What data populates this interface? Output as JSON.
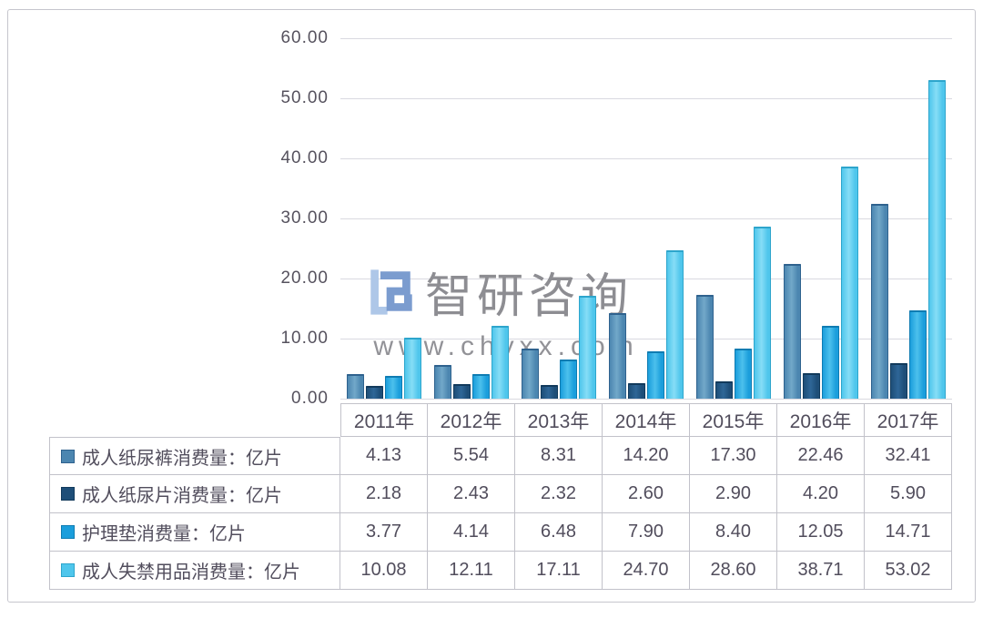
{
  "watermark": {
    "brand": "智研咨询",
    "url": "www.chyxx.com",
    "logo_color_dark": "#7b9ccf",
    "logo_color_light": "#aec7e8"
  },
  "chart_data": {
    "type": "bar",
    "title": "",
    "categories": [
      "2011年",
      "2012年",
      "2013年",
      "2014年",
      "2015年",
      "2016年",
      "2017年"
    ],
    "series": [
      {
        "name": "成人纸尿裤消费量：亿片",
        "values": [
          4.13,
          5.54,
          8.31,
          14.2,
          17.3,
          22.46,
          32.41
        ],
        "color": "#4c86b0",
        "color_light": "#72a8c9",
        "color_dark": "#2f628e"
      },
      {
        "name": "成人纸尿片消费量：亿片",
        "values": [
          2.18,
          2.43,
          2.32,
          2.6,
          2.9,
          4.2,
          5.9
        ],
        "color": "#1e4e78",
        "color_light": "#2e6697",
        "color_dark": "#123a5c"
      },
      {
        "name": "护理垫消费量：亿片",
        "values": [
          3.77,
          4.14,
          6.48,
          7.9,
          8.4,
          12.05,
          14.71
        ],
        "color": "#1b9edc",
        "color_light": "#4cc0ec",
        "color_dark": "#0f7cb2"
      },
      {
        "name": "成人失禁用品消费量：亿片",
        "values": [
          10.08,
          12.11,
          17.11,
          24.7,
          28.6,
          38.71,
          53.02
        ],
        "color": "#4fc6ec",
        "color_light": "#86ddf6",
        "color_dark": "#2da5cc"
      }
    ],
    "ylim": [
      0,
      60
    ],
    "ytick_labels": [
      "60.00",
      "50.00",
      "40.00",
      "30.00",
      "20.00",
      "10.00",
      "0.00"
    ],
    "grid": true,
    "legend_position": "table-rows-left",
    "value_decimals": 2
  }
}
